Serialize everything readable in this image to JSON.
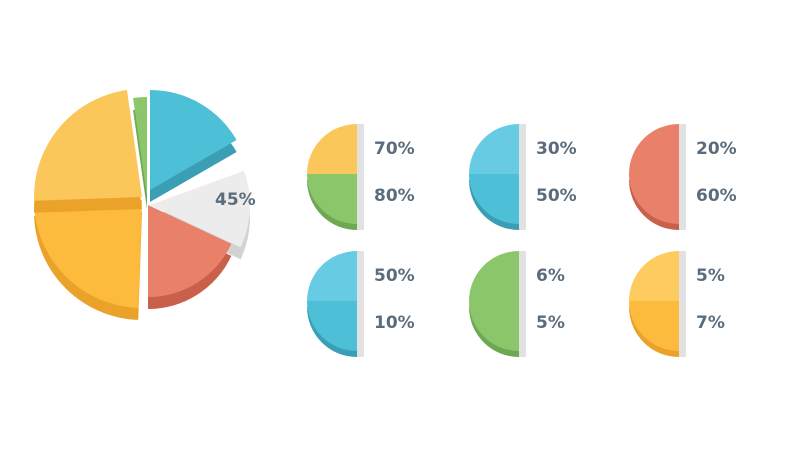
{
  "main_pie": {
    "label": "45%"
  },
  "groups": [
    {
      "top": "70%",
      "bottom": "80%"
    },
    {
      "top": "30%",
      "bottom": "50%"
    },
    {
      "top": "20%",
      "bottom": "60%"
    },
    {
      "top": "50%",
      "bottom": "10%"
    },
    {
      "top": "6%",
      "bottom": "5%"
    },
    {
      "top": "5%",
      "bottom": "7%"
    }
  ]
}
